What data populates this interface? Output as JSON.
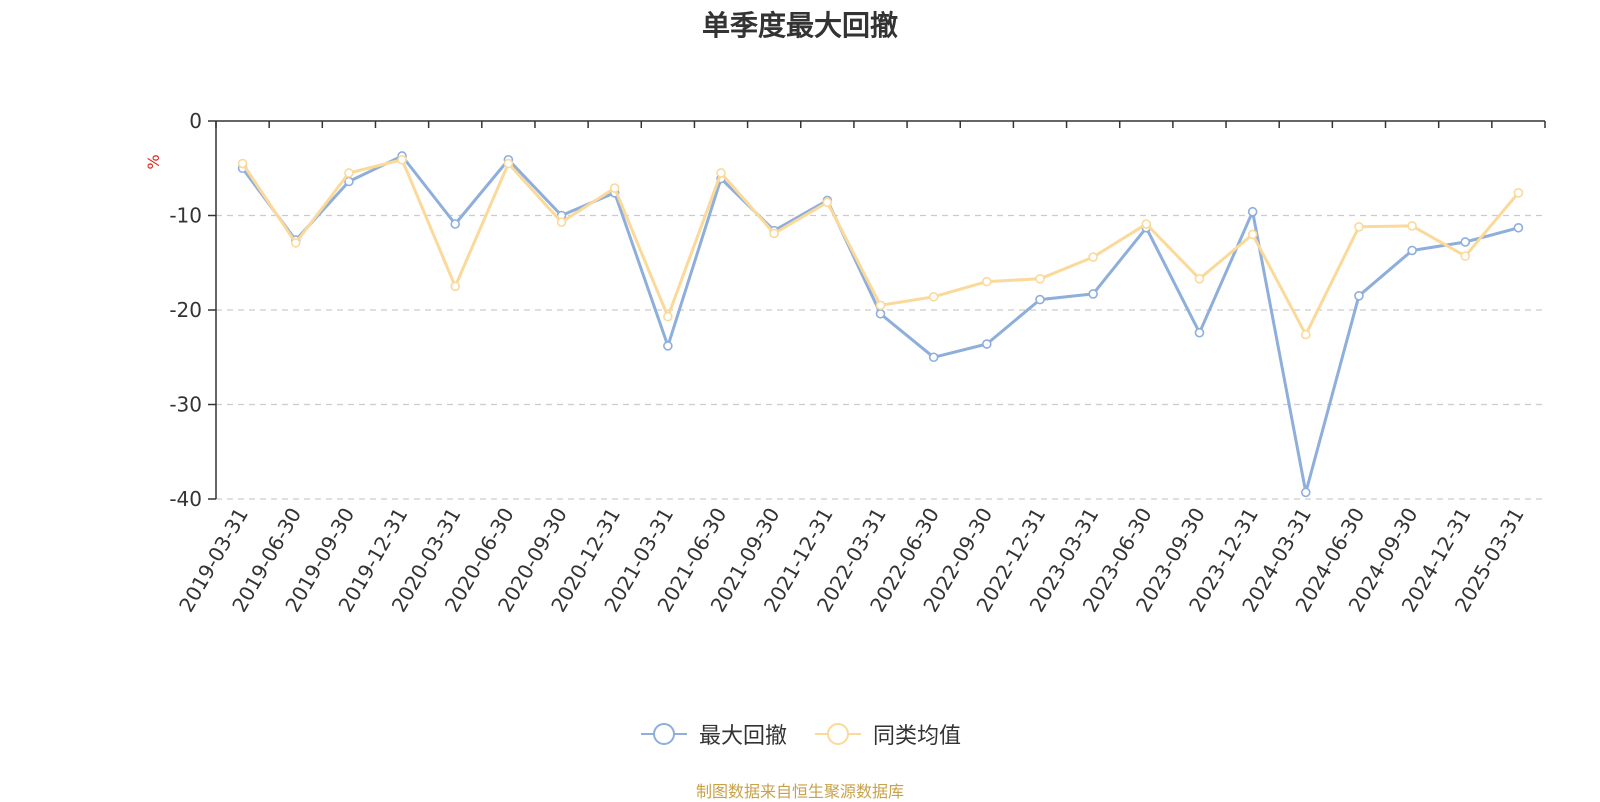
{
  "chart_data": {
    "type": "line",
    "title": "单季度最大回撤",
    "ylabel": "%",
    "xlabel": "",
    "ylim": [
      -40,
      0
    ],
    "yticks": [
      0,
      -10,
      -20,
      -30,
      -40
    ],
    "grid": true,
    "legend_position": "bottom",
    "categories": [
      "2019-03-31",
      "2019-06-30",
      "2019-09-30",
      "2019-12-31",
      "2020-03-31",
      "2020-06-30",
      "2020-09-30",
      "2020-12-31",
      "2021-03-31",
      "2021-06-30",
      "2021-09-30",
      "2021-12-31",
      "2022-03-31",
      "2022-06-30",
      "2022-09-30",
      "2022-12-31",
      "2023-03-31",
      "2023-06-30",
      "2023-09-30",
      "2023-12-31",
      "2024-03-31",
      "2024-06-30",
      "2024-09-30",
      "2024-12-31",
      "2025-03-31"
    ],
    "series": [
      {
        "name": "最大回撤",
        "color": "#8eaedb",
        "values": [
          -5.0,
          -12.6,
          -6.4,
          -3.7,
          -10.9,
          -4.1,
          -10.0,
          -7.6,
          -23.8,
          -6.1,
          -11.6,
          -8.4,
          -20.4,
          -25.0,
          -23.6,
          -18.9,
          -18.3,
          -11.3,
          -22.4,
          -9.6,
          -39.3,
          -18.5,
          -13.7,
          -12.8,
          -11.3
        ]
      },
      {
        "name": "同类均值",
        "color": "#fbd99a",
        "values": [
          -4.5,
          -12.9,
          -5.5,
          -4.1,
          -17.5,
          -4.5,
          -10.7,
          -7.1,
          -20.7,
          -5.5,
          -11.9,
          -8.6,
          -19.5,
          -18.6,
          -17.0,
          -16.7,
          -14.4,
          -10.9,
          -16.7,
          -12.0,
          -22.6,
          -11.2,
          -11.1,
          -14.3,
          -7.6
        ]
      }
    ]
  },
  "source_text": "制图数据来自恒生聚源数据库"
}
